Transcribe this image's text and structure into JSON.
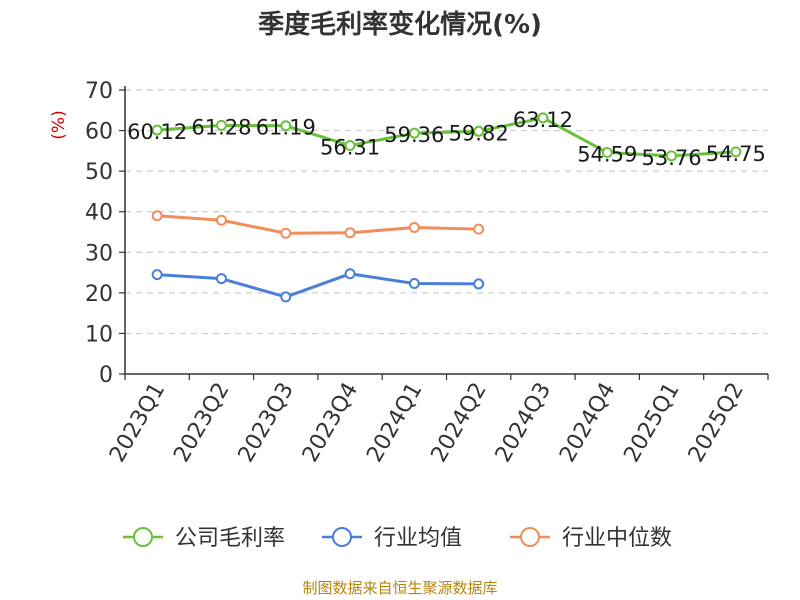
{
  "title": "季度毛利率变化情况(%)",
  "source": "制图数据来自恒生聚源数据库",
  "colors": {
    "company": "#67c23a",
    "industry_avg": "#4a7fd8",
    "industry_median": "#f28c5a",
    "grid": "#cccccc",
    "axis": "#333333",
    "unit": "#cc0000",
    "source": "#b8860b"
  },
  "chart_data": {
    "type": "line",
    "title": "季度毛利率变化情况(%)",
    "ylabel": "(%)",
    "xlabel": "",
    "ylim": [
      0,
      70
    ],
    "yticks": [
      0,
      10,
      20,
      30,
      40,
      50,
      60,
      70
    ],
    "grid": true,
    "legend_position": "bottom",
    "categories": [
      "2023Q1",
      "2023Q2",
      "2023Q3",
      "2023Q4",
      "2024Q1",
      "2024Q2",
      "2024Q3",
      "2024Q4",
      "2025Q1",
      "2025Q2"
    ],
    "series": [
      {
        "name": "公司毛利率",
        "color": "#67c23a",
        "values": [
          60.12,
          61.28,
          61.19,
          56.31,
          59.36,
          59.82,
          63.12,
          54.59,
          53.76,
          54.75
        ],
        "labels": [
          "60.12",
          "61.28",
          "61.19",
          "56.31",
          "59.36",
          "59.82",
          "63.12",
          "54.59",
          "53.76",
          "54.75"
        ]
      },
      {
        "name": "行业均值",
        "color": "#4a7fd8",
        "values": [
          24.5,
          23.5,
          19,
          24.7,
          22.3,
          22.2,
          null,
          null,
          null,
          null
        ]
      },
      {
        "name": "行业中位数",
        "color": "#f28c5a",
        "values": [
          39,
          37.9,
          34.7,
          34.8,
          36.1,
          35.7,
          null,
          null,
          null,
          null
        ]
      }
    ]
  }
}
